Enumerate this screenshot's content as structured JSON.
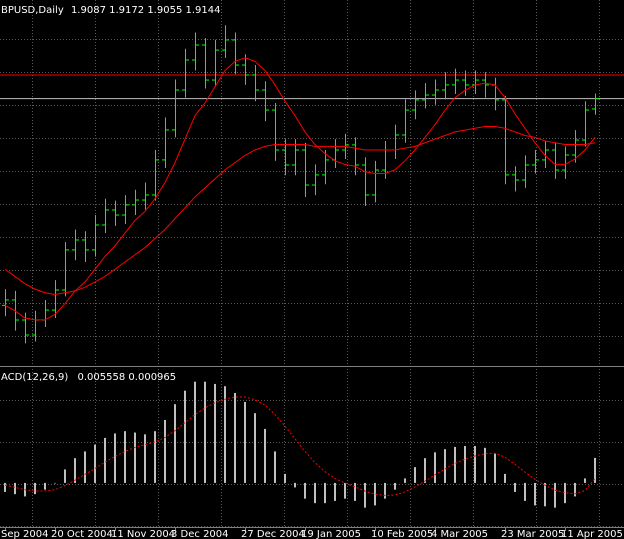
{
  "chart_data": {
    "type": "ohlc",
    "title": "BPUSD,Daily",
    "categories": [
      "Sep 2004",
      null,
      null,
      null,
      null,
      "20 Oct 2004",
      null,
      null,
      null,
      null,
      null,
      "11 Nov 2004",
      null,
      null,
      null,
      null,
      null,
      "3 Dec 2004",
      null,
      null,
      null,
      null,
      null,
      null,
      "27 Dec 2004",
      null,
      null,
      null,
      null,
      null,
      "19 Jan 2005",
      null,
      null,
      null,
      null,
      null,
      null,
      "10 Feb 2005",
      null,
      null,
      null,
      null,
      null,
      "4 Mar 2005",
      null,
      null,
      null,
      null,
      null,
      null,
      "23 Mar 2005",
      null,
      null,
      null,
      null,
      null,
      "11 Apr 2005",
      null,
      null,
      null
    ],
    "open": [
      1.8,
      1.803,
      1.7919,
      1.7836,
      1.7919,
      1.7974,
      1.8085,
      1.8307,
      1.8362,
      1.8307,
      1.8445,
      1.8528,
      1.85,
      1.8556,
      1.8583,
      1.8611,
      1.8805,
      1.8971,
      1.9192,
      1.9358,
      1.9441,
      1.9247,
      1.9413,
      1.9469,
      1.933,
      1.9275,
      1.9192,
      1.9081,
      1.886,
      1.8777,
      1.886,
      1.8666,
      1.8722,
      1.8805,
      1.886,
      1.8888,
      1.8777,
      1.8611,
      1.8749,
      1.886,
      1.8943,
      1.9081,
      1.9137,
      1.9164,
      1.9192,
      1.922,
      1.9247,
      1.922,
      1.9247,
      1.922,
      1.9137,
      1.8722,
      1.8694,
      1.8777,
      1.8805,
      1.886,
      1.8749,
      1.8832,
      1.8915,
      1.9087
    ],
    "high": [
      1.809,
      1.808,
      1.796,
      1.797,
      1.803,
      1.814,
      1.835,
      1.842,
      1.841,
      1.85,
      1.859,
      1.858,
      1.861,
      1.864,
      1.868,
      1.886,
      1.904,
      1.925,
      1.942,
      1.951,
      1.948,
      1.947,
      1.955,
      1.951,
      1.939,
      1.933,
      1.924,
      1.912,
      1.892,
      1.892,
      1.89,
      1.878,
      1.886,
      1.892,
      1.895,
      1.893,
      1.882,
      1.88,
      1.891,
      1.9,
      1.914,
      1.919,
      1.923,
      1.925,
      1.929,
      1.931,
      1.93,
      1.93,
      1.929,
      1.926,
      1.916,
      1.877,
      1.883,
      1.886,
      1.891,
      1.89,
      1.888,
      1.897,
      1.913,
      1.9172
    ],
    "low": [
      1.794,
      1.786,
      1.779,
      1.78,
      1.788,
      1.793,
      1.805,
      1.825,
      1.824,
      1.827,
      1.84,
      1.844,
      1.845,
      1.85,
      1.853,
      1.858,
      1.876,
      1.893,
      1.915,
      1.93,
      1.92,
      1.921,
      1.937,
      1.928,
      1.922,
      1.913,
      1.902,
      1.88,
      1.872,
      1.872,
      1.86,
      1.861,
      1.867,
      1.876,
      1.881,
      1.872,
      1.855,
      1.857,
      1.87,
      1.881,
      1.89,
      1.903,
      1.909,
      1.911,
      1.914,
      1.917,
      1.916,
      1.917,
      1.915,
      1.908,
      1.867,
      1.863,
      1.865,
      1.873,
      1.876,
      1.87,
      1.87,
      1.879,
      1.888,
      1.9055
    ],
    "close": [
      1.803,
      1.7919,
      1.7836,
      1.7919,
      1.7974,
      1.8085,
      1.8307,
      1.8362,
      1.8307,
      1.8445,
      1.8528,
      1.85,
      1.8556,
      1.8583,
      1.8611,
      1.8805,
      1.8971,
      1.9192,
      1.9358,
      1.9441,
      1.9247,
      1.9413,
      1.9469,
      1.933,
      1.9275,
      1.9192,
      1.9081,
      1.886,
      1.8777,
      1.886,
      1.8666,
      1.8722,
      1.8805,
      1.886,
      1.8888,
      1.8777,
      1.8611,
      1.8749,
      1.886,
      1.8943,
      1.9081,
      1.9137,
      1.9164,
      1.9192,
      1.922,
      1.9247,
      1.922,
      1.9247,
      1.922,
      1.9137,
      1.8722,
      1.8694,
      1.8777,
      1.8805,
      1.886,
      1.8749,
      1.8832,
      1.8915,
      1.9081,
      1.9144
    ],
    "color": "#00ff00",
    "ylim": [
      1.767,
      1.969
    ],
    "series": [
      {
        "color": "#ff0000",
        "values": [
          1.8,
          1.797,
          1.793,
          1.792,
          1.792,
          1.795,
          1.801,
          1.808,
          1.813,
          1.82,
          1.827,
          1.833,
          1.84,
          1.847,
          1.852,
          1.859,
          1.868,
          1.879,
          1.892,
          1.905,
          1.912,
          1.921,
          1.93,
          1.935,
          1.937,
          1.935,
          1.93,
          1.922,
          1.913,
          1.905,
          1.896,
          1.889,
          1.884,
          1.88,
          1.878,
          1.877,
          1.874,
          1.873,
          1.873,
          1.875,
          1.88,
          1.886,
          1.893,
          1.9,
          1.908,
          1.915,
          1.919,
          1.922,
          1.923,
          1.922,
          1.915,
          1.906,
          1.898,
          1.89,
          1.883,
          1.878,
          1.878,
          1.881,
          1.886,
          1.893
        ]
      },
      {
        "color": "#ff0000",
        "values": [
          1.82,
          1.816,
          1.812,
          1.809,
          1.807,
          1.806,
          1.807,
          1.808,
          1.81,
          1.813,
          1.816,
          1.82,
          1.824,
          1.828,
          1.832,
          1.837,
          1.842,
          1.848,
          1.854,
          1.86,
          1.865,
          1.87,
          1.875,
          1.879,
          1.883,
          1.886,
          1.888,
          1.889,
          1.889,
          1.889,
          1.889,
          1.888,
          1.888,
          1.888,
          1.888,
          1.887,
          1.886,
          1.886,
          1.886,
          1.886,
          1.887,
          1.888,
          1.89,
          1.892,
          1.894,
          1.896,
          1.897,
          1.898,
          1.899,
          1.899,
          1.898,
          1.896,
          1.894,
          1.893,
          1.891,
          1.89,
          1.889,
          1.889,
          1.889,
          1.89
        ]
      }
    ],
    "hlines": [
      {
        "value": 1.9275,
        "color": "#ff0000"
      }
    ],
    "bid_color": "#c0c0c0",
    "grid": true,
    "indicator": {
      "title": "ACD(12,26,9)",
      "histogram": [
        -0.002,
        -0.0025,
        -0.003,
        -0.0025,
        -0.0015,
        0.0,
        0.003,
        0.0055,
        0.007,
        0.0085,
        0.01,
        0.011,
        0.0115,
        0.0112,
        0.0108,
        0.0115,
        0.014,
        0.0175,
        0.0205,
        0.0225,
        0.0225,
        0.022,
        0.0215,
        0.02,
        0.018,
        0.0155,
        0.012,
        0.007,
        0.002,
        -0.001,
        -0.0035,
        -0.0045,
        -0.0045,
        -0.004,
        -0.0035,
        -0.004,
        -0.0055,
        -0.005,
        -0.0035,
        -0.0015,
        0.001,
        0.0035,
        0.0055,
        0.0068,
        0.0075,
        0.008,
        0.0082,
        0.0082,
        0.0078,
        0.0065,
        0.002,
        -0.002,
        -0.004,
        -0.005,
        -0.0052,
        -0.0055,
        -0.0045,
        -0.003,
        0.001,
        0.005558
      ],
      "signal": [
        -0.0005,
        -0.001,
        -0.0015,
        -0.0018,
        -0.0018,
        -0.0015,
        -0.0006,
        0.0006,
        0.0019,
        0.0032,
        0.0046,
        0.0059,
        0.007,
        0.0079,
        0.0085,
        0.0091,
        0.0101,
        0.0116,
        0.0134,
        0.0152,
        0.0167,
        0.0178,
        0.0186,
        0.0191,
        0.0191,
        0.0185,
        0.0173,
        0.0152,
        0.0126,
        0.0098,
        0.007,
        0.0045,
        0.0025,
        0.001,
        0.0,
        -0.0009,
        -0.0018,
        -0.0025,
        -0.0028,
        -0.0027,
        -0.002,
        -0.0009,
        0.0004,
        0.0018,
        0.0031,
        0.0043,
        0.0053,
        0.006,
        0.0065,
        0.0066,
        0.0057,
        0.0041,
        0.0024,
        0.0008,
        -0.0005,
        -0.0016,
        -0.0022,
        -0.0024,
        -0.0017,
        0.000965
      ],
      "histogram_color": "#c0c0c0",
      "signal_color": "#ff0000",
      "ylim": [
        -0.0098,
        0.0251
      ]
    }
  }
}
